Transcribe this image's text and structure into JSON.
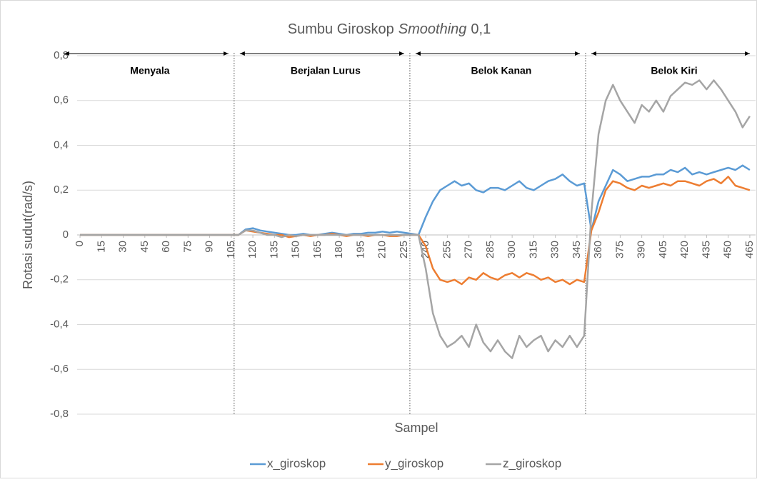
{
  "chart_data": {
    "type": "line",
    "title_parts": [
      "Sumbu Giroskop",
      "Smoothing",
      "0,1"
    ],
    "x_label": "Sampel",
    "y_label": "Rotasi sudut(rad/s)",
    "x": [
      0,
      5,
      10,
      15,
      20,
      25,
      30,
      35,
      40,
      45,
      50,
      55,
      60,
      65,
      70,
      75,
      80,
      85,
      90,
      95,
      100,
      105,
      110,
      115,
      120,
      125,
      130,
      135,
      140,
      145,
      150,
      155,
      160,
      165,
      170,
      175,
      180,
      185,
      190,
      195,
      200,
      205,
      210,
      215,
      220,
      225,
      230,
      235,
      240,
      245,
      250,
      255,
      260,
      265,
      270,
      275,
      280,
      285,
      290,
      295,
      300,
      305,
      310,
      315,
      320,
      325,
      330,
      335,
      340,
      345,
      350,
      355,
      360,
      365,
      370,
      375,
      380,
      385,
      390,
      395,
      400,
      405,
      410,
      415,
      420,
      425,
      430,
      435,
      440,
      445,
      450,
      455,
      460,
      465
    ],
    "series": [
      {
        "name": "x_giroskop",
        "color": "#5b9bd5",
        "values": [
          0,
          0,
          0,
          0,
          0,
          0,
          0,
          0,
          0,
          0,
          0,
          0,
          0,
          0,
          0,
          0,
          0,
          0,
          0,
          0,
          0,
          0,
          0,
          0.025,
          0.03,
          0.02,
          0.015,
          0.01,
          0.005,
          0,
          0,
          0.005,
          0,
          0,
          0.005,
          0.01,
          0.005,
          0,
          0.005,
          0.005,
          0.01,
          0.01,
          0.015,
          0.01,
          0.015,
          0.01,
          0.005,
          0,
          0.08,
          0.15,
          0.2,
          0.22,
          0.24,
          0.22,
          0.23,
          0.2,
          0.19,
          0.21,
          0.21,
          0.2,
          0.22,
          0.24,
          0.21,
          0.2,
          0.22,
          0.24,
          0.25,
          0.27,
          0.24,
          0.22,
          0.23,
          0.02,
          0.15,
          0.22,
          0.29,
          0.27,
          0.24,
          0.25,
          0.26,
          0.26,
          0.27,
          0.27,
          0.29,
          0.28,
          0.3,
          0.27,
          0.28,
          0.27,
          0.28,
          0.29,
          0.3,
          0.29,
          0.31,
          0.29
        ]
      },
      {
        "name": "y_giroskop",
        "color": "#ed7d31",
        "values": [
          0,
          0,
          0,
          0,
          0,
          0,
          0,
          0,
          0,
          0,
          0,
          0,
          0,
          0,
          0,
          0,
          0,
          0,
          0,
          0,
          0,
          0,
          0,
          0.02,
          0.015,
          0.01,
          0.005,
          0,
          0,
          -0.01,
          -0.005,
          0,
          -0.005,
          0,
          0,
          0.005,
          0,
          -0.005,
          0,
          0,
          -0.005,
          0,
          0,
          -0.005,
          -0.005,
          0,
          0,
          0,
          -0.05,
          -0.15,
          -0.2,
          -0.21,
          -0.2,
          -0.22,
          -0.19,
          -0.2,
          -0.17,
          -0.19,
          -0.2,
          -0.18,
          -0.17,
          -0.19,
          -0.17,
          -0.18,
          -0.2,
          -0.19,
          -0.21,
          -0.2,
          -0.22,
          -0.2,
          -0.21,
          0.02,
          0.1,
          0.2,
          0.24,
          0.23,
          0.21,
          0.2,
          0.22,
          0.21,
          0.22,
          0.23,
          0.22,
          0.24,
          0.24,
          0.23,
          0.22,
          0.24,
          0.25,
          0.23,
          0.26,
          0.22,
          0.21,
          0.2
        ]
      },
      {
        "name": "z_giroskop",
        "color": "#a5a5a5",
        "values": [
          0,
          0,
          0,
          0,
          0,
          0,
          0,
          0,
          0,
          0,
          0,
          0,
          0,
          0,
          0,
          0,
          0,
          0,
          0,
          0,
          0,
          0,
          0,
          0.02,
          0.02,
          0.01,
          0,
          0,
          -0.01,
          0,
          -0.005,
          0,
          0,
          0,
          0,
          0,
          0,
          0,
          0,
          0,
          0,
          0,
          0,
          0,
          0,
          0,
          0,
          0,
          -0.15,
          -0.35,
          -0.45,
          -0.5,
          -0.48,
          -0.45,
          -0.5,
          -0.4,
          -0.48,
          -0.52,
          -0.47,
          -0.52,
          -0.55,
          -0.45,
          -0.5,
          -0.47,
          -0.45,
          -0.52,
          -0.47,
          -0.5,
          -0.45,
          -0.5,
          -0.45,
          0.1,
          0.45,
          0.6,
          0.67,
          0.6,
          0.55,
          0.5,
          0.58,
          0.55,
          0.6,
          0.55,
          0.62,
          0.65,
          0.68,
          0.67,
          0.69,
          0.65,
          0.69,
          0.65,
          0.6,
          0.55,
          0.48,
          0.53
        ]
      }
    ],
    "xlim": [
      -2,
      469
    ],
    "xticks": [
      0,
      15,
      30,
      45,
      60,
      75,
      90,
      105,
      120,
      135,
      150,
      165,
      180,
      195,
      210,
      225,
      240,
      255,
      270,
      285,
      300,
      315,
      330,
      345,
      360,
      375,
      390,
      405,
      420,
      435,
      450,
      465
    ],
    "ylim": [
      -0.8,
      0.8
    ],
    "yticks": [
      {
        "value": -0.8,
        "label": "-0,8"
      },
      {
        "value": -0.6,
        "label": "-0,6"
      },
      {
        "value": -0.4,
        "label": "-0,4"
      },
      {
        "value": -0.2,
        "label": "-0,2"
      },
      0,
      {
        "value": 0.2,
        "label": "0,2"
      },
      {
        "value": 0.4,
        "label": "0,4"
      },
      {
        "value": 0.6,
        "label": "0,6"
      },
      {
        "value": 0.8,
        "label": "0,8"
      }
    ],
    "grid": true,
    "legend": "bottom",
    "regions": [
      "Menyala",
      "Berjalan Lurus",
      "Belok Kanan",
      "Belok Kiri"
    ],
    "dividers": [
      107,
      229,
      351
    ]
  }
}
